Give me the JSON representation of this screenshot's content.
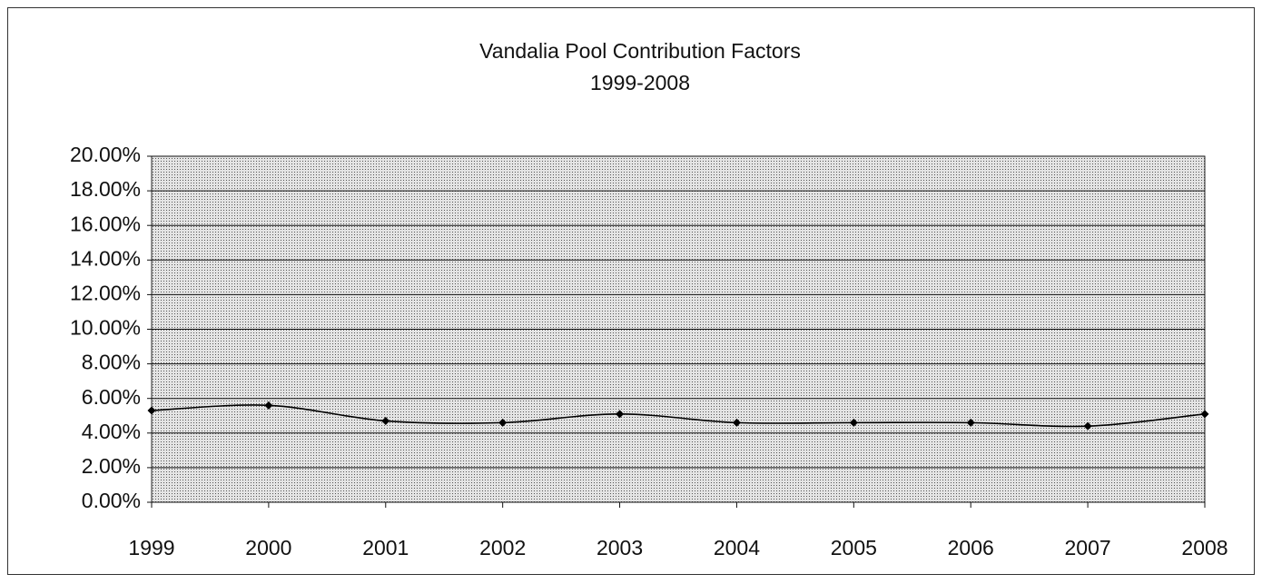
{
  "chart_data": {
    "type": "line",
    "title": "Vandalia Pool Contribution Factors",
    "subtitle": "1999-2008",
    "x": [
      1999,
      2000,
      2001,
      2002,
      2003,
      2004,
      2005,
      2006,
      2007,
      2008
    ],
    "xlim": [
      1999,
      2008
    ],
    "xticks": [
      1999,
      2000,
      2001,
      2002,
      2003,
      2004,
      2005,
      2006,
      2007,
      2008
    ],
    "series": [
      {
        "color": "#000000",
        "values": [
          5.3,
          5.6,
          4.7,
          4.6,
          5.1,
          4.6,
          4.6,
          4.6,
          4.4,
          5.1
        ]
      }
    ],
    "ylim": [
      0,
      20
    ],
    "yticks": [
      {
        "value": 0,
        "label": "0.00%"
      },
      {
        "value": 2,
        "label": "2.00%"
      },
      {
        "value": 4,
        "label": "4.00%"
      },
      {
        "value": 6,
        "label": "6.00%"
      },
      {
        "value": 8,
        "label": "8.00%"
      },
      {
        "value": 10,
        "label": "10.00%"
      },
      {
        "value": 12,
        "label": "12.00%"
      },
      {
        "value": 14,
        "label": "14.00%"
      },
      {
        "value": 16,
        "label": "16.00%"
      },
      {
        "value": 18,
        "label": "18.00%"
      },
      {
        "value": 20,
        "label": "20.00%"
      }
    ],
    "grid": true,
    "smooth": true
  }
}
